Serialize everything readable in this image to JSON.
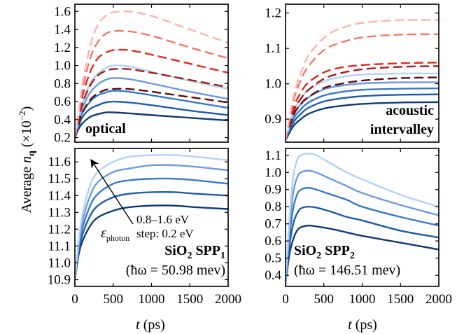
{
  "ylabel": "Average n_q (×10⁻²)",
  "ylabel_parts": {
    "pre": "Average ",
    "n": "n",
    "q": "q",
    "unit_open": " (×10",
    "exp": "−2",
    "unit_close": ")"
  },
  "xlabel_parts": {
    "t": "t",
    "unit": " (ps)"
  },
  "annotation": {
    "energy_range": "0.8–1.6 eV",
    "step": "step: 0.2 eV",
    "eps_symbol": "ε",
    "eps_sub": "photon"
  },
  "colors": {
    "blues": [
      "#0d3a74",
      "#1f5ca6",
      "#3a78c9",
      "#6f99df",
      "#b4d2f2"
    ],
    "reds": [
      "#5c0c10",
      "#a21d1c",
      "#df2b22",
      "#f0786e",
      "#f7b6b1"
    ]
  },
  "chart_data": [
    {
      "id": "optical",
      "type": "line",
      "label_lines": [
        "optical"
      ],
      "xlim": [
        0,
        2000
      ],
      "ylim": [
        0.15,
        1.68
      ],
      "xticks": [
        "0",
        "500",
        "1000",
        "1500",
        "2000"
      ],
      "yticks": [
        "0.2",
        "0.4",
        "0.6",
        "0.8",
        "1.0",
        "1.2",
        "1.4",
        "1.6"
      ],
      "series": [
        {
          "dash": false,
          "color_index": 0,
          "x": [
            0,
            50,
            100,
            200,
            300,
            400,
            500,
            700,
            1000,
            1500,
            2000
          ],
          "y": [
            0.2,
            0.3,
            0.36,
            0.43,
            0.46,
            0.48,
            0.48,
            0.47,
            0.45,
            0.42,
            0.39
          ]
        },
        {
          "dash": false,
          "color_index": 1,
          "x": [
            0,
            50,
            100,
            200,
            300,
            400,
            500,
            700,
            1000,
            1500,
            2000
          ],
          "y": [
            0.2,
            0.33,
            0.43,
            0.52,
            0.56,
            0.59,
            0.6,
            0.59,
            0.56,
            0.5,
            0.45
          ]
        },
        {
          "dash": false,
          "color_index": 2,
          "x": [
            0,
            50,
            100,
            200,
            300,
            400,
            500,
            700,
            1000,
            1500,
            2000
          ],
          "y": [
            0.2,
            0.36,
            0.48,
            0.6,
            0.67,
            0.7,
            0.72,
            0.71,
            0.67,
            0.6,
            0.53
          ]
        },
        {
          "dash": false,
          "color_index": 3,
          "x": [
            0,
            50,
            100,
            200,
            300,
            400,
            500,
            700,
            1000,
            1500,
            2000
          ],
          "y": [
            0.2,
            0.38,
            0.53,
            0.7,
            0.79,
            0.84,
            0.86,
            0.85,
            0.8,
            0.71,
            0.63
          ]
        },
        {
          "dash": false,
          "color_index": 4,
          "x": [
            0,
            50,
            100,
            200,
            300,
            400,
            500,
            700,
            1000,
            1500,
            2000
          ],
          "y": [
            0.2,
            0.4,
            0.58,
            0.8,
            0.91,
            0.97,
            1.0,
            0.99,
            0.93,
            0.83,
            0.74
          ]
        },
        {
          "dash": true,
          "color_index": 0,
          "x": [
            0,
            50,
            100,
            200,
            300,
            400,
            500,
            700,
            1000,
            1500,
            2000
          ],
          "y": [
            0.2,
            0.36,
            0.48,
            0.62,
            0.69,
            0.73,
            0.74,
            0.74,
            0.71,
            0.65,
            0.59
          ]
        },
        {
          "dash": true,
          "color_index": 1,
          "x": [
            0,
            50,
            100,
            200,
            300,
            400,
            500,
            700,
            1000,
            1500,
            2000
          ],
          "y": [
            0.2,
            0.4,
            0.58,
            0.78,
            0.89,
            0.94,
            0.96,
            0.96,
            0.92,
            0.84,
            0.76
          ]
        },
        {
          "dash": true,
          "color_index": 2,
          "x": [
            0,
            50,
            100,
            200,
            300,
            400,
            500,
            700,
            1000,
            1500,
            2000
          ],
          "y": [
            0.2,
            0.43,
            0.66,
            0.93,
            1.08,
            1.14,
            1.17,
            1.17,
            1.12,
            1.02,
            0.92
          ]
        },
        {
          "dash": true,
          "color_index": 3,
          "x": [
            0,
            50,
            100,
            200,
            300,
            400,
            500,
            700,
            1000,
            1500,
            2000
          ],
          "y": [
            0.2,
            0.46,
            0.73,
            1.08,
            1.26,
            1.35,
            1.38,
            1.38,
            1.33,
            1.2,
            1.08
          ]
        },
        {
          "dash": true,
          "color_index": 4,
          "x": [
            0,
            50,
            100,
            200,
            300,
            400,
            500,
            700,
            1000,
            1500,
            2000
          ],
          "y": [
            0.2,
            0.48,
            0.8,
            1.22,
            1.45,
            1.55,
            1.59,
            1.6,
            1.55,
            1.4,
            1.25
          ]
        }
      ]
    },
    {
      "id": "acoustic",
      "type": "line",
      "label_lines": [
        "acoustic",
        "intervalley"
      ],
      "xlim": [
        0,
        2000
      ],
      "ylim": [
        0.835,
        1.225
      ],
      "xticks": [
        "0",
        "500",
        "1000",
        "1500",
        "2000"
      ],
      "yticks": [
        "0.9",
        "1.0",
        "1.1",
        "1.2"
      ],
      "series": [
        {
          "dash": false,
          "color_index": 0,
          "x": [
            0,
            100,
            200,
            300,
            500,
            700,
            1000,
            1500,
            2000
          ],
          "y": [
            0.84,
            0.88,
            0.9,
            0.915,
            0.93,
            0.937,
            0.943,
            0.947,
            0.948
          ]
        },
        {
          "dash": false,
          "color_index": 1,
          "x": [
            0,
            100,
            200,
            300,
            500,
            700,
            1000,
            1500,
            2000
          ],
          "y": [
            0.84,
            0.89,
            0.915,
            0.932,
            0.95,
            0.958,
            0.965,
            0.969,
            0.97
          ]
        },
        {
          "dash": false,
          "color_index": 2,
          "x": [
            0,
            100,
            200,
            300,
            500,
            700,
            1000,
            1500,
            2000
          ],
          "y": [
            0.84,
            0.9,
            0.928,
            0.947,
            0.967,
            0.976,
            0.983,
            0.986,
            0.987
          ]
        },
        {
          "dash": false,
          "color_index": 3,
          "x": [
            0,
            100,
            200,
            300,
            500,
            700,
            1000,
            1500,
            2000
          ],
          "y": [
            0.84,
            0.91,
            0.942,
            0.962,
            0.984,
            0.994,
            1.001,
            1.004,
            1.004
          ]
        },
        {
          "dash": false,
          "color_index": 4,
          "x": [
            0,
            100,
            200,
            300,
            500,
            700,
            1000,
            1500,
            2000
          ],
          "y": [
            0.84,
            0.92,
            0.958,
            0.982,
            1.007,
            1.018,
            1.026,
            1.029,
            1.029
          ]
        },
        {
          "dash": true,
          "color_index": 0,
          "x": [
            0,
            100,
            200,
            300,
            500,
            700,
            1000,
            1500,
            2000
          ],
          "y": [
            0.84,
            0.91,
            0.943,
            0.963,
            0.988,
            0.999,
            1.009,
            1.016,
            1.018
          ]
        },
        {
          "dash": true,
          "color_index": 1,
          "x": [
            0,
            100,
            200,
            300,
            500,
            700,
            1000,
            1500,
            2000
          ],
          "y": [
            0.84,
            0.92,
            0.958,
            0.983,
            1.014,
            1.029,
            1.041,
            1.048,
            1.05
          ]
        },
        {
          "dash": true,
          "color_index": 2,
          "x": [
            0,
            100,
            200,
            300,
            500,
            700,
            1000,
            1500,
            2000
          ],
          "y": [
            0.84,
            0.93,
            0.975,
            1.004,
            1.032,
            1.045,
            1.053,
            1.058,
            1.06
          ]
        },
        {
          "dash": true,
          "color_index": 3,
          "x": [
            0,
            100,
            200,
            300,
            500,
            700,
            1000,
            1500,
            2000
          ],
          "y": [
            0.84,
            0.95,
            1.01,
            1.05,
            1.095,
            1.115,
            1.131,
            1.139,
            1.14
          ]
        },
        {
          "dash": true,
          "color_index": 4,
          "x": [
            0,
            100,
            200,
            300,
            500,
            700,
            1000,
            1500,
            2000
          ],
          "y": [
            0.84,
            0.96,
            1.03,
            1.08,
            1.13,
            1.155,
            1.172,
            1.18,
            1.18
          ]
        }
      ]
    },
    {
      "id": "sio2-spp1",
      "type": "line",
      "label_lines": [
        "SiO₂ SPP₁",
        "(ħω = 50.98 mev)"
      ],
      "label_bold": "SiO",
      "label_bold_sub": "2",
      "label_bold_mid": " SPP",
      "label_bold_sub2": "1",
      "label_energy": "(ħω = 50.98 mev)",
      "xlim": [
        0,
        2000
      ],
      "ylim": [
        10.86,
        11.68
      ],
      "xticks": [
        "0",
        "500",
        "1000",
        "1500",
        "2000"
      ],
      "yticks": [
        "10.9",
        "11.0",
        "11.1",
        "11.2",
        "11.3",
        "11.4",
        "11.5",
        "11.6"
      ],
      "series": [
        {
          "dash": false,
          "color_index": 0,
          "x": [
            0,
            50,
            100,
            200,
            300,
            500,
            700,
            1000,
            1300,
            1600,
            2000
          ],
          "y": [
            10.9,
            11.05,
            11.13,
            11.22,
            11.27,
            11.31,
            11.33,
            11.34,
            11.34,
            11.33,
            11.32
          ]
        },
        {
          "dash": false,
          "color_index": 1,
          "x": [
            0,
            50,
            100,
            200,
            300,
            500,
            700,
            1000,
            1300,
            1600,
            2000
          ],
          "y": [
            10.9,
            11.07,
            11.17,
            11.28,
            11.34,
            11.39,
            11.41,
            11.42,
            11.42,
            11.41,
            11.4
          ]
        },
        {
          "dash": false,
          "color_index": 2,
          "x": [
            0,
            50,
            100,
            200,
            300,
            500,
            700,
            1000,
            1300,
            1600,
            2000
          ],
          "y": [
            10.9,
            11.09,
            11.21,
            11.34,
            11.41,
            11.47,
            11.49,
            11.5,
            11.5,
            11.49,
            11.47
          ]
        },
        {
          "dash": false,
          "color_index": 3,
          "x": [
            0,
            50,
            100,
            200,
            300,
            500,
            700,
            1000,
            1300,
            1600,
            2000
          ],
          "y": [
            10.9,
            11.11,
            11.25,
            11.4,
            11.48,
            11.54,
            11.56,
            11.58,
            11.58,
            11.57,
            11.55
          ]
        },
        {
          "dash": false,
          "color_index": 4,
          "x": [
            0,
            50,
            100,
            200,
            300,
            500,
            700,
            1000,
            1300,
            1600,
            2000
          ],
          "y": [
            10.9,
            11.13,
            11.29,
            11.46,
            11.54,
            11.6,
            11.63,
            11.64,
            11.64,
            11.63,
            11.61
          ]
        }
      ]
    },
    {
      "id": "sio2-spp2",
      "type": "line",
      "label_lines": [
        "SiO₂ SPP₂",
        "(ħω = 146.51 mev)"
      ],
      "label_bold": "SiO",
      "label_bold_sub": "2",
      "label_bold_mid": " SPP",
      "label_bold_sub2": "2",
      "label_energy": "(ħω = 146.51 mev)",
      "xlim": [
        0,
        2000
      ],
      "ylim": [
        0.335,
        1.14
      ],
      "xticks": [
        "0",
        "500",
        "1000",
        "1500",
        "2000"
      ],
      "yticks": [
        "0.4",
        "0.5",
        "0.6",
        "0.7",
        "0.8",
        "0.9",
        "1.0",
        "1.1"
      ],
      "series": [
        {
          "dash": false,
          "color_index": 0,
          "x": [
            0,
            50,
            100,
            150,
            200,
            300,
            400,
            600,
            800,
            1000,
            1500,
            2000
          ],
          "y": [
            0.35,
            0.52,
            0.61,
            0.66,
            0.68,
            0.69,
            0.685,
            0.67,
            0.65,
            0.63,
            0.59,
            0.55
          ]
        },
        {
          "dash": false,
          "color_index": 1,
          "x": [
            0,
            50,
            100,
            150,
            200,
            300,
            400,
            600,
            800,
            1000,
            1500,
            2000
          ],
          "y": [
            0.35,
            0.57,
            0.7,
            0.76,
            0.79,
            0.8,
            0.795,
            0.77,
            0.74,
            0.72,
            0.66,
            0.62
          ]
        },
        {
          "dash": false,
          "color_index": 2,
          "x": [
            0,
            50,
            100,
            150,
            200,
            300,
            400,
            600,
            800,
            1000,
            1500,
            2000
          ],
          "y": [
            0.35,
            0.62,
            0.79,
            0.87,
            0.9,
            0.91,
            0.9,
            0.87,
            0.84,
            0.8,
            0.74,
            0.69
          ]
        },
        {
          "dash": false,
          "color_index": 3,
          "x": [
            0,
            50,
            100,
            150,
            200,
            300,
            400,
            600,
            800,
            1000,
            1500,
            2000
          ],
          "y": [
            0.35,
            0.67,
            0.88,
            0.97,
            1.0,
            1.01,
            1.0,
            0.96,
            0.92,
            0.88,
            0.81,
            0.75
          ]
        },
        {
          "dash": false,
          "color_index": 4,
          "x": [
            0,
            50,
            100,
            150,
            200,
            300,
            400,
            600,
            800,
            1000,
            1500,
            2000
          ],
          "y": [
            0.35,
            0.72,
            0.97,
            1.07,
            1.1,
            1.11,
            1.1,
            1.05,
            1.0,
            0.96,
            0.87,
            0.8
          ]
        }
      ]
    }
  ]
}
